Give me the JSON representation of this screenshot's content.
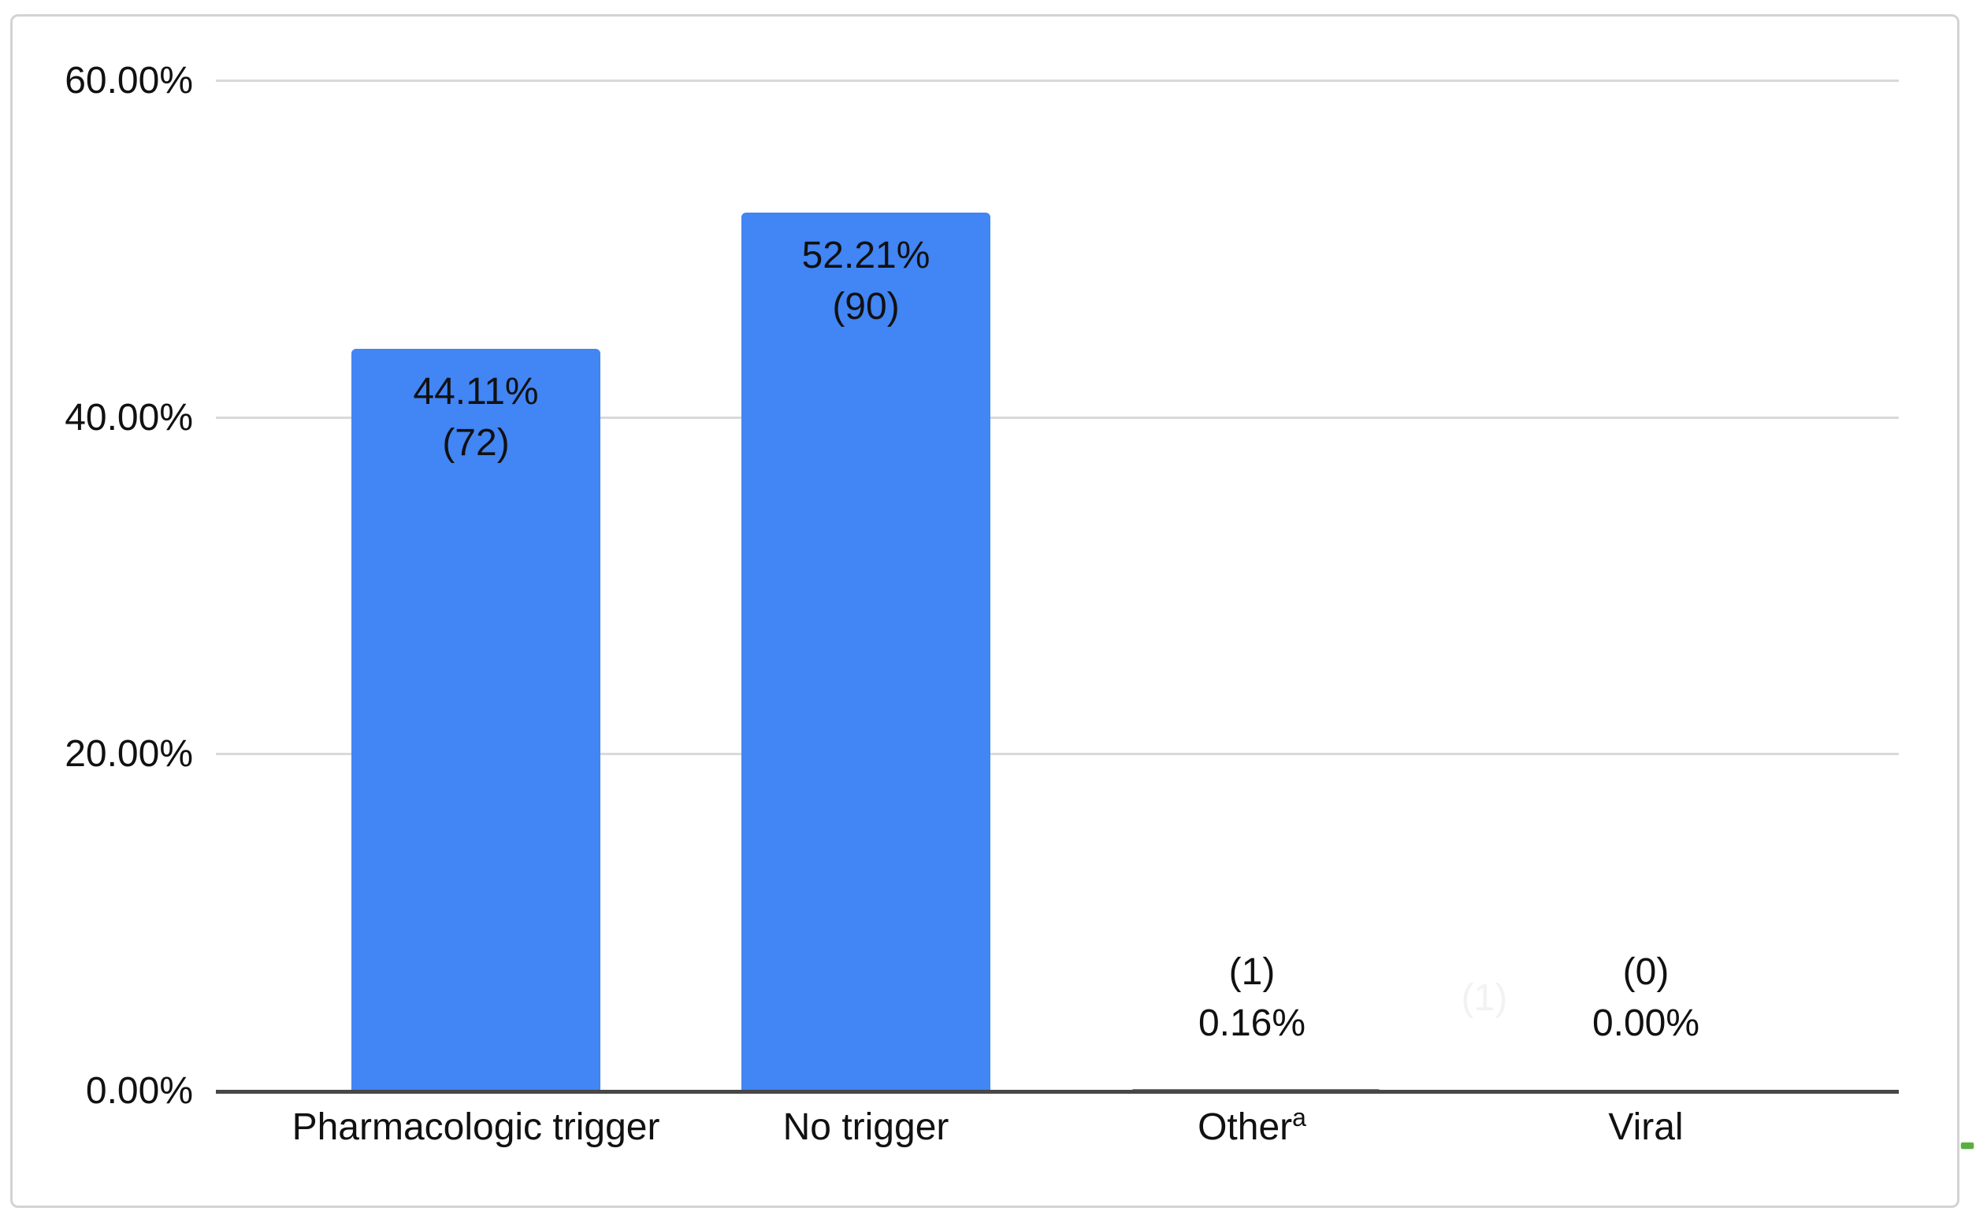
{
  "chart_data": {
    "type": "bar",
    "categories": [
      "Pharmacologic trigger",
      "No trigger",
      "Other",
      "Viral"
    ],
    "category_superscripts": [
      "",
      "",
      "a",
      ""
    ],
    "values": [
      44.11,
      52.21,
      0.16,
      0.0
    ],
    "counts": [
      72,
      90,
      1,
      0
    ],
    "bar_labels": [
      {
        "line1": "44.11%",
        "line2": "(72)",
        "placement": "inside-bar-top"
      },
      {
        "line1": "52.21%",
        "line2": "(90)",
        "placement": "inside-bar-top"
      },
      {
        "line1": "(1)",
        "line2": "0.16%",
        "placement": "above-axis"
      },
      {
        "line1": "(0)",
        "line2": "0.00%",
        "placement": "above-axis"
      }
    ],
    "ghost_label": "(1)",
    "yticks": [
      "60.00%",
      "40.00%",
      "20.00%",
      "0.00%"
    ],
    "ylim": [
      0,
      60
    ],
    "grid": true,
    "legend_position": "none",
    "title": "",
    "xlabel": "",
    "ylabel": "",
    "bar_color": "#4285f4",
    "axis_color": "#474747",
    "gridline_color": "#d9d9d9",
    "frame_border_color": "#d3d3d3",
    "handle_color": "#5aae41"
  }
}
